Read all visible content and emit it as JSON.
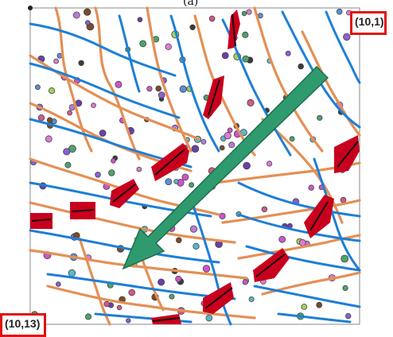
{
  "panel_label": "(a)",
  "corner_labels": {
    "top_right": "(10,1)",
    "bottom_left": "(10,13)"
  },
  "colors": {
    "blue_line": "#1e7fd6",
    "orange_line": "#e39055",
    "red_segment": "#c8001e",
    "black_segment": "#1a0a0a",
    "arrow": "#2e9a6e",
    "label_border": "#e01010"
  }
}
